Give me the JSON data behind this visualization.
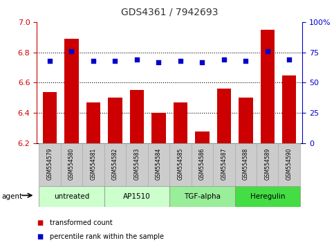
{
  "title": "GDS4361 / 7942693",
  "samples": [
    "GSM554579",
    "GSM554580",
    "GSM554581",
    "GSM554582",
    "GSM554583",
    "GSM554584",
    "GSM554585",
    "GSM554586",
    "GSM554587",
    "GSM554588",
    "GSM554589",
    "GSM554590"
  ],
  "bar_values": [
    6.54,
    6.89,
    6.47,
    6.5,
    6.55,
    6.4,
    6.47,
    6.28,
    6.56,
    6.5,
    6.95,
    6.65
  ],
  "percentile_values": [
    68,
    76,
    68,
    68,
    69,
    67,
    68,
    67,
    69,
    68,
    76,
    69
  ],
  "ylim_left": [
    6.2,
    7.0
  ],
  "ylim_right": [
    0,
    100
  ],
  "yticks_left": [
    6.2,
    6.4,
    6.6,
    6.8,
    7.0
  ],
  "yticks_right": [
    0,
    25,
    50,
    75,
    100
  ],
  "grid_values": [
    6.4,
    6.6,
    6.8
  ],
  "bar_color": "#cc0000",
  "dot_color": "#0000cc",
  "agent_groups": [
    {
      "label": "untreated",
      "start": 0,
      "end": 2,
      "color": "#ccffcc"
    },
    {
      "label": "AP1510",
      "start": 3,
      "end": 5,
      "color": "#ccffcc"
    },
    {
      "label": "TGF-alpha",
      "start": 6,
      "end": 8,
      "color": "#99ee99"
    },
    {
      "label": "Heregulin",
      "start": 9,
      "end": 11,
      "color": "#44dd44"
    }
  ],
  "legend_bar_label": "transformed count",
  "legend_dot_label": "percentile rank within the sample",
  "agent_label": "agent",
  "left_color": "#cc0000",
  "right_color": "#0000cc",
  "title_color": "#333333",
  "bg_color": "#ffffff",
  "label_bg_color": "#cccccc",
  "label_edge_color": "#aaaaaa"
}
